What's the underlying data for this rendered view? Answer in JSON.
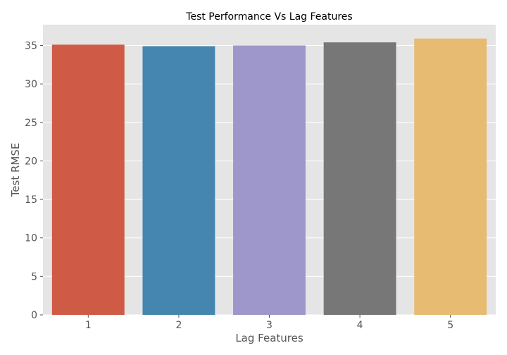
{
  "chart_data": {
    "type": "bar",
    "title": "Test Performance Vs Lag Features",
    "xlabel": "Lag Features",
    "ylabel": "Test RMSE",
    "categories": [
      "1",
      "2",
      "3",
      "4",
      "5"
    ],
    "values": [
      35.1,
      34.9,
      35.0,
      35.4,
      35.9
    ],
    "ylim": [
      0,
      37.7
    ],
    "yticks": [
      0,
      5,
      10,
      15,
      20,
      25,
      30,
      35
    ],
    "grid": true,
    "colors": [
      "#cf5b47",
      "#4486b0",
      "#9e97cb",
      "#777777",
      "#e7bb72"
    ],
    "background": "#e5e5e5"
  }
}
